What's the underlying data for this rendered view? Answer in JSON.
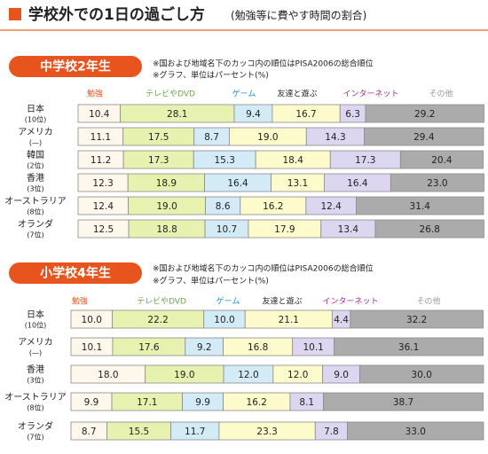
{
  "title": "学校外での1日の過ごし方",
  "subtitle": "(勉強等に費やす時間の割合)",
  "chart_data": [
    {
      "type": "stacked-bar-horizontal",
      "title": "中学校2年生",
      "notes": [
        "※国および地域名下のカッコ内の順位はPISA2006の総合順位",
        "※グラフ、単位はパーセント(%)"
      ],
      "categories": [
        "日本",
        "アメリカ",
        "韓国",
        "香港",
        "オーストラリア",
        "オランダ"
      ],
      "category_sublabels": [
        "(10位)",
        "(—)",
        "(2位)",
        "(3位)",
        "(8位)",
        "(7位)"
      ],
      "xlim": [
        0,
        100
      ],
      "series": [
        {
          "name": "勉強",
          "color": "#fdf7ec",
          "label_color": "#e8541e",
          "values": [
            10.4,
            11.1,
            11.2,
            12.3,
            12.4,
            12.5
          ],
          "value_labels": [
            "10.4",
            "11.1",
            "11.2",
            "12.3",
            "12.4",
            "12.5"
          ]
        },
        {
          "name": "テレビやDVD",
          "color": "#e8f2b0",
          "label_color": "#6aa84f",
          "values": [
            28.1,
            17.5,
            17.3,
            18.9,
            19.0,
            18.8
          ],
          "value_labels": [
            "28.1",
            "17.5",
            "17.3",
            "18.9",
            "19.0",
            "18.8"
          ]
        },
        {
          "name": "ゲーム",
          "color": "#d2ebf7",
          "label_color": "#2a8fd0",
          "values": [
            9.4,
            8.7,
            15.3,
            16.4,
            8.6,
            10.7
          ],
          "value_labels": [
            "9.4",
            "8.7",
            "15.3",
            "16.4",
            "8.6",
            "10.7"
          ]
        },
        {
          "name": "友達と遊ぶ",
          "color": "#fdfbcc",
          "label_color": "#222222",
          "values": [
            16.7,
            19.0,
            18.4,
            13.1,
            16.2,
            17.9
          ],
          "value_labels": [
            "16.7",
            "19.0",
            "18.4",
            "13.1",
            "16.2",
            "17.9"
          ]
        },
        {
          "name": "インターネット",
          "color": "#dcd6f0",
          "label_color": "#a0309a",
          "values": [
            6.3,
            14.3,
            17.3,
            16.4,
            12.4,
            13.4
          ],
          "value_labels": [
            "6.3",
            "14.3",
            "17.3",
            "16.4",
            "12.4",
            "13.4"
          ]
        },
        {
          "name": "その他",
          "color": "#ababab",
          "label_color": "#999999",
          "values": [
            29.2,
            29.4,
            20.4,
            23.0,
            31.4,
            26.8
          ],
          "value_labels": [
            "29.2",
            "29.4",
            "20.4",
            "23.0",
            "31.4",
            "26.8"
          ]
        }
      ]
    },
    {
      "type": "stacked-bar-horizontal",
      "title": "小学校4年生",
      "notes": [
        "※国および地域名下のカッコ内の順位はPISA2006の総合順位",
        "※グラフ、単位はパーセント(%)"
      ],
      "categories": [
        "日本",
        "アメリカ",
        "香港",
        "オーストラリア",
        "オランダ"
      ],
      "category_sublabels": [
        "(10位)",
        "(—)",
        "(3位)",
        "(8位)",
        "(7位)"
      ],
      "xlim": [
        0,
        100
      ],
      "series": [
        {
          "name": "勉強",
          "color": "#fdf7ec",
          "label_color": "#e8541e",
          "values": [
            10.0,
            10.1,
            18.0,
            9.9,
            8.7
          ],
          "value_labels": [
            "10.0",
            "10.1",
            "18.0",
            "9.9",
            "8.7"
          ]
        },
        {
          "name": "テレビやDVD",
          "color": "#e8f2b0",
          "label_color": "#6aa84f",
          "values": [
            22.2,
            17.6,
            19.0,
            17.1,
            15.5
          ],
          "value_labels": [
            "22.2",
            "17.6",
            "19.0",
            "17.1",
            "15.5"
          ]
        },
        {
          "name": "ゲーム",
          "color": "#d2ebf7",
          "label_color": "#2a8fd0",
          "values": [
            10.0,
            9.2,
            12.0,
            9.9,
            11.7
          ],
          "value_labels": [
            "10.0",
            "9.2",
            "12.0",
            "9.9",
            "11.7"
          ]
        },
        {
          "name": "友達と遊ぶ",
          "color": "#fdfbcc",
          "label_color": "#222222",
          "values": [
            21.1,
            16.8,
            12.0,
            16.2,
            23.3
          ],
          "value_labels": [
            "21.1",
            "16.8",
            "12.0",
            "16.2",
            "23.3"
          ]
        },
        {
          "name": "インターネット",
          "color": "#dcd6f0",
          "label_color": "#a0309a",
          "values": [
            4.4,
            10.1,
            9.0,
            8.1,
            7.8
          ],
          "value_labels": [
            "4.4",
            "10.1",
            "9.0",
            "8.1",
            "7.8"
          ]
        },
        {
          "name": "その他",
          "color": "#ababab",
          "label_color": "#999999",
          "values": [
            32.2,
            36.1,
            30.0,
            38.7,
            33.0
          ],
          "value_labels": [
            "32.2",
            "36.1",
            "30.0",
            "38.7",
            "33.0"
          ]
        }
      ]
    }
  ]
}
